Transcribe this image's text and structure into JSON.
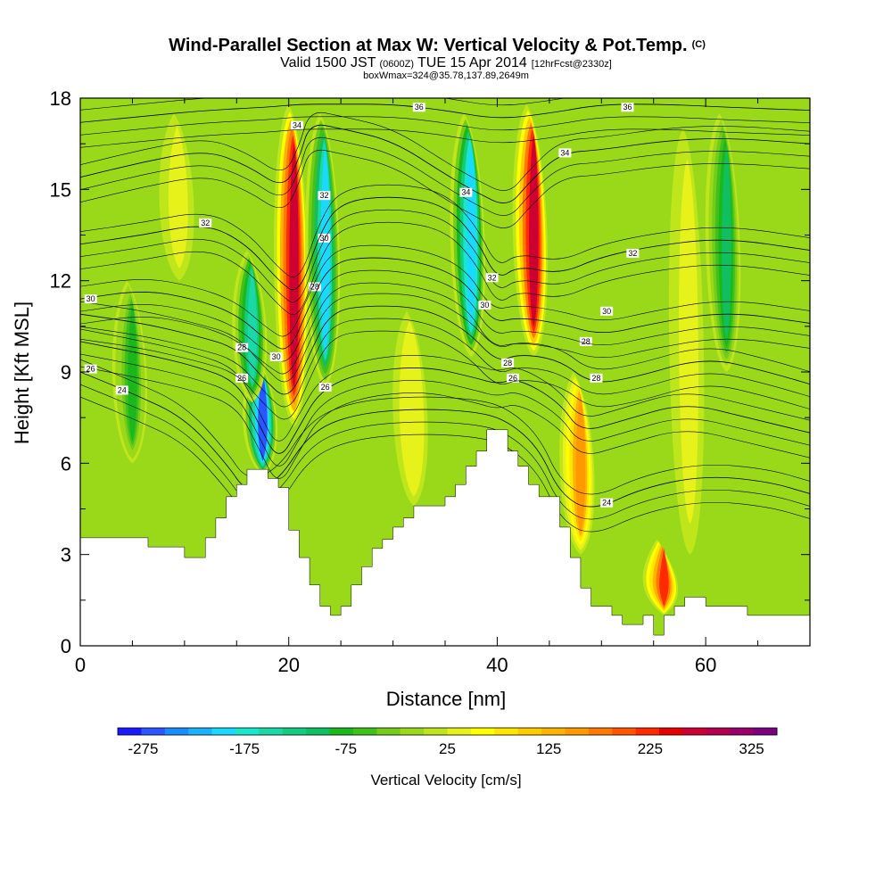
{
  "title": {
    "main": "Wind-Parallel Section at Max W: Vertical Velocity & Pot.Temp.",
    "main_suffix": "(C)",
    "valid_prefix": "Valid 1500 JST",
    "valid_utc": "(0600Z)",
    "valid_date": "TUE 15 Apr 2014",
    "forecast": "[12hrFcst@2330z]",
    "box": "boxWmax=324@35.78,137.89,2649m"
  },
  "chart_data": {
    "type": "heatmap",
    "xlabel": "Distance [nm]",
    "ylabel": "Height [Kft MSL]",
    "xlim": [
      0,
      70
    ],
    "ylim": [
      0,
      18
    ],
    "x_ticks": [
      "0",
      "20",
      "40",
      "60"
    ],
    "y_ticks": [
      "0",
      "3",
      "6",
      "9",
      "12",
      "15",
      "18"
    ],
    "colorbar": {
      "label": "Vertical Velocity [cm/s]",
      "min": -300,
      "max": 350,
      "step": 25,
      "tick_labels": [
        "-275",
        "-175",
        "-75",
        "25",
        "125",
        "225",
        "325"
      ],
      "colors": [
        "#1a1aff",
        "#2b55ff",
        "#1a8cff",
        "#1ab2ff",
        "#1ad9ff",
        "#1ae6cc",
        "#1ad9a6",
        "#14cc80",
        "#10c060",
        "#1ab81a",
        "#40c01a",
        "#73cc1a",
        "#99d91a",
        "#bfe61a",
        "#e6f21a",
        "#ffff00",
        "#ffe600",
        "#ffcc00",
        "#ffb300",
        "#ff9900",
        "#ff7a00",
        "#ff5500",
        "#ff2a00",
        "#e60000",
        "#cc0033",
        "#b3004d",
        "#99006b",
        "#7a0080"
      ]
    },
    "velocity_features": [
      {
        "x": 17.5,
        "z_bottom": 5.6,
        "z_top": 9.5,
        "w": -260
      },
      {
        "x": 20.5,
        "z_bottom": 7.2,
        "z_top": 17.8,
        "w": 320
      },
      {
        "x": 23.5,
        "z_bottom": 8.5,
        "z_top": 17.5,
        "w": -180
      },
      {
        "x": 16.5,
        "z_bottom": 8.0,
        "z_top": 13.0,
        "w": -140
      },
      {
        "x": 37.5,
        "z_bottom": 9.5,
        "z_top": 17.5,
        "w": -200
      },
      {
        "x": 43.5,
        "z_bottom": 9.5,
        "z_top": 17.8,
        "w": 310
      },
      {
        "x": 48.0,
        "z_bottom": 3.0,
        "z_top": 9.0,
        "w": 180
      },
      {
        "x": 32.0,
        "z_bottom": 4.6,
        "z_top": 11.0,
        "w": 70
      },
      {
        "x": 9.5,
        "z_bottom": 12.0,
        "z_top": 17.5,
        "w": 60
      },
      {
        "x": 58.5,
        "z_bottom": 3.0,
        "z_top": 17.0,
        "w": 60
      },
      {
        "x": 62.0,
        "z_bottom": 9.0,
        "z_top": 17.5,
        "w": -90
      },
      {
        "x": 56.0,
        "z_bottom": 1.0,
        "z_top": 3.5,
        "w": 250
      },
      {
        "x": 5.0,
        "z_bottom": 6.0,
        "z_top": 12.0,
        "w": -60
      }
    ],
    "isentrope_labels": [
      "24",
      "26",
      "28",
      "30",
      "32",
      "34",
      "36"
    ],
    "isentropes": [
      {
        "label": "24",
        "points": [
          [
            0,
            9.0
          ],
          [
            5,
            8.3
          ],
          [
            10,
            7.5
          ],
          [
            14,
            6.0
          ],
          [
            16,
            5.0
          ],
          [
            19,
            5.4
          ],
          [
            22,
            7.0
          ],
          [
            26,
            7.6
          ],
          [
            32,
            7.8
          ],
          [
            38,
            7.7
          ],
          [
            41,
            7.4
          ],
          [
            44,
            6.5
          ],
          [
            46,
            5.0
          ],
          [
            49,
            4.4
          ],
          [
            54,
            5.2
          ],
          [
            60,
            5.6
          ],
          [
            66,
            5.4
          ],
          [
            70,
            5.0
          ]
        ],
        "label_at": [
          [
            4,
            8.4
          ],
          [
            50.5,
            4.7
          ]
        ]
      },
      {
        "label": "26",
        "points": [
          [
            0,
            10.0
          ],
          [
            6,
            9.6
          ],
          [
            11,
            9.2
          ],
          [
            15,
            8.7
          ],
          [
            17,
            7.4
          ],
          [
            19,
            6.0
          ],
          [
            21,
            7.2
          ],
          [
            23,
            8.4
          ],
          [
            27,
            9.0
          ],
          [
            33,
            9.2
          ],
          [
            38,
            8.8
          ],
          [
            40,
            8.6
          ],
          [
            42,
            8.8
          ],
          [
            46,
            8.0
          ],
          [
            48,
            7.0
          ],
          [
            52,
            7.4
          ],
          [
            58,
            8.0
          ],
          [
            64,
            7.5
          ],
          [
            70,
            7.0
          ]
        ],
        "label_at": [
          [
            1,
            9.1
          ],
          [
            15.5,
            8.8
          ],
          [
            23.5,
            8.5
          ],
          [
            41.5,
            8.8
          ]
        ]
      },
      {
        "label": "28",
        "points": [
          [
            0,
            10.9
          ],
          [
            6,
            10.6
          ],
          [
            11,
            10.2
          ],
          [
            15,
            9.8
          ],
          [
            17.5,
            8.8
          ],
          [
            20,
            8.0
          ],
          [
            22,
            9.6
          ],
          [
            24,
            11.0
          ],
          [
            28,
            11.2
          ],
          [
            33,
            11.1
          ],
          [
            37,
            10.4
          ],
          [
            40,
            9.3
          ],
          [
            42,
            9.6
          ],
          [
            46,
            9.4
          ],
          [
            49,
            8.6
          ],
          [
            53,
            8.8
          ],
          [
            60,
            9.5
          ],
          [
            66,
            9.0
          ],
          [
            70,
            8.6
          ]
        ],
        "label_at": [
          [
            15.5,
            9.8
          ],
          [
            22.5,
            11.8
          ],
          [
            41,
            9.3
          ],
          [
            48.5,
            10.0
          ],
          [
            49.5,
            8.8
          ]
        ]
      },
      {
        "label": "30",
        "points": [
          [
            0,
            11.4
          ],
          [
            6,
            11.7
          ],
          [
            11,
            11.4
          ],
          [
            15,
            10.9
          ],
          [
            18,
            10.0
          ],
          [
            20,
            9.6
          ],
          [
            22,
            11.2
          ],
          [
            24,
            12.6
          ],
          [
            28,
            12.8
          ],
          [
            33,
            12.6
          ],
          [
            37,
            12.0
          ],
          [
            39.5,
            10.6
          ],
          [
            42,
            10.8
          ],
          [
            46,
            10.6
          ],
          [
            50,
            10.2
          ],
          [
            55,
            10.6
          ],
          [
            62,
            11.0
          ],
          [
            70,
            10.6
          ]
        ],
        "label_at": [
          [
            1,
            11.4
          ],
          [
            18.8,
            9.5
          ],
          [
            23.4,
            13.4
          ],
          [
            38.8,
            11.2
          ],
          [
            50.5,
            11.0
          ]
        ]
      },
      {
        "label": "32",
        "points": [
          [
            0,
            13.2
          ],
          [
            6,
            13.5
          ],
          [
            12,
            13.9
          ],
          [
            16,
            13.2
          ],
          [
            19,
            12.0
          ],
          [
            21,
            11.5
          ],
          [
            23,
            13.6
          ],
          [
            25,
            14.6
          ],
          [
            30,
            14.8
          ],
          [
            35,
            14.5
          ],
          [
            38,
            13.4
          ],
          [
            40,
            12.0
          ],
          [
            42,
            12.5
          ],
          [
            46,
            12.2
          ],
          [
            50,
            12.8
          ],
          [
            56,
            13.2
          ],
          [
            62,
            13.4
          ],
          [
            70,
            13.0
          ]
        ],
        "label_at": [
          [
            12,
            13.9
          ],
          [
            23.4,
            14.8
          ],
          [
            39.5,
            12.1
          ],
          [
            53,
            12.9
          ]
        ]
      },
      {
        "label": "34",
        "points": [
          [
            0,
            15.4
          ],
          [
            6,
            15.9
          ],
          [
            12,
            16.3
          ],
          [
            16,
            15.8
          ],
          [
            19.5,
            15.0
          ],
          [
            21,
            16.0
          ],
          [
            22,
            17.2
          ],
          [
            25,
            17.0
          ],
          [
            30,
            16.6
          ],
          [
            35,
            15.5
          ],
          [
            38,
            14.9
          ],
          [
            41,
            14.4
          ],
          [
            43,
            15.2
          ],
          [
            46,
            16.2
          ],
          [
            50,
            16.3
          ],
          [
            56,
            16.6
          ],
          [
            62,
            16.7
          ],
          [
            70,
            16.5
          ]
        ],
        "label_at": [
          [
            20.8,
            17.1
          ],
          [
            37,
            14.9
          ],
          [
            46.5,
            16.2
          ]
        ]
      },
      {
        "label": "36",
        "points": [
          [
            0,
            17.2
          ],
          [
            6,
            17.4
          ],
          [
            12,
            17.6
          ],
          [
            18,
            17.7
          ],
          [
            21,
            17.8
          ],
          [
            25,
            17.8
          ],
          [
            30,
            17.8
          ],
          [
            35,
            17.6
          ],
          [
            40,
            17.3
          ],
          [
            45,
            17.5
          ],
          [
            50,
            17.8
          ],
          [
            56,
            17.8
          ],
          [
            62,
            17.7
          ],
          [
            70,
            17.6
          ]
        ],
        "label_at": [
          [
            32.5,
            17.7
          ],
          [
            52.5,
            17.7
          ]
        ]
      }
    ],
    "terrain": [
      [
        0,
        3.55
      ],
      [
        4,
        3.55
      ],
      [
        6.5,
        3.55
      ],
      [
        6.5,
        3.25
      ],
      [
        10,
        3.25
      ],
      [
        10,
        2.9
      ],
      [
        12,
        2.9
      ],
      [
        12,
        3.55
      ],
      [
        13,
        3.55
      ],
      [
        13,
        4.2
      ],
      [
        14,
        4.2
      ],
      [
        14,
        4.9
      ],
      [
        15,
        4.9
      ],
      [
        15,
        5.3
      ],
      [
        16,
        5.3
      ],
      [
        16,
        5.8
      ],
      [
        18,
        5.8
      ],
      [
        18,
        5.5
      ],
      [
        19,
        5.5
      ],
      [
        19,
        5.2
      ],
      [
        20,
        5.2
      ],
      [
        20,
        3.8
      ],
      [
        21,
        3.8
      ],
      [
        21,
        2.9
      ],
      [
        22,
        2.9
      ],
      [
        22,
        2.0
      ],
      [
        23,
        2.0
      ],
      [
        23,
        1.3
      ],
      [
        24,
        1.3
      ],
      [
        24,
        1.0
      ],
      [
        25,
        1.0
      ],
      [
        25,
        1.3
      ],
      [
        26,
        1.3
      ],
      [
        26,
        2.0
      ],
      [
        27,
        2.0
      ],
      [
        27,
        2.6
      ],
      [
        28,
        2.6
      ],
      [
        28,
        3.2
      ],
      [
        29,
        3.2
      ],
      [
        29,
        3.5
      ],
      [
        30,
        3.5
      ],
      [
        30,
        3.9
      ],
      [
        31,
        3.9
      ],
      [
        31,
        4.2
      ],
      [
        32,
        4.2
      ],
      [
        32,
        4.6
      ],
      [
        35,
        4.6
      ],
      [
        35,
        4.9
      ],
      [
        36,
        4.9
      ],
      [
        36,
        5.3
      ],
      [
        37,
        5.3
      ],
      [
        37,
        5.9
      ],
      [
        38,
        5.9
      ],
      [
        38,
        6.4
      ],
      [
        39,
        6.4
      ],
      [
        39,
        7.1
      ],
      [
        41,
        7.1
      ],
      [
        41,
        6.4
      ],
      [
        42,
        6.4
      ],
      [
        42,
        5.9
      ],
      [
        43,
        5.9
      ],
      [
        43,
        5.3
      ],
      [
        44,
        5.3
      ],
      [
        44,
        4.9
      ],
      [
        46,
        4.9
      ],
      [
        46,
        3.9
      ],
      [
        47,
        3.9
      ],
      [
        47,
        2.9
      ],
      [
        48,
        2.9
      ],
      [
        48,
        1.9
      ],
      [
        49,
        1.9
      ],
      [
        49,
        1.3
      ],
      [
        51,
        1.3
      ],
      [
        51,
        1.0
      ],
      [
        52,
        1.0
      ],
      [
        52,
        0.7
      ],
      [
        54,
        0.7
      ],
      [
        54,
        1.0
      ],
      [
        55,
        1.0
      ],
      [
        55,
        0.35
      ],
      [
        56,
        0.35
      ],
      [
        56,
        1.0
      ],
      [
        57,
        1.0
      ],
      [
        57,
        1.3
      ],
      [
        58,
        1.3
      ],
      [
        58,
        1.6
      ],
      [
        60,
        1.6
      ],
      [
        60,
        1.3
      ],
      [
        64,
        1.3
      ],
      [
        64,
        1.0
      ],
      [
        70,
        1.0
      ],
      [
        70,
        0
      ],
      [
        0,
        0
      ]
    ]
  }
}
